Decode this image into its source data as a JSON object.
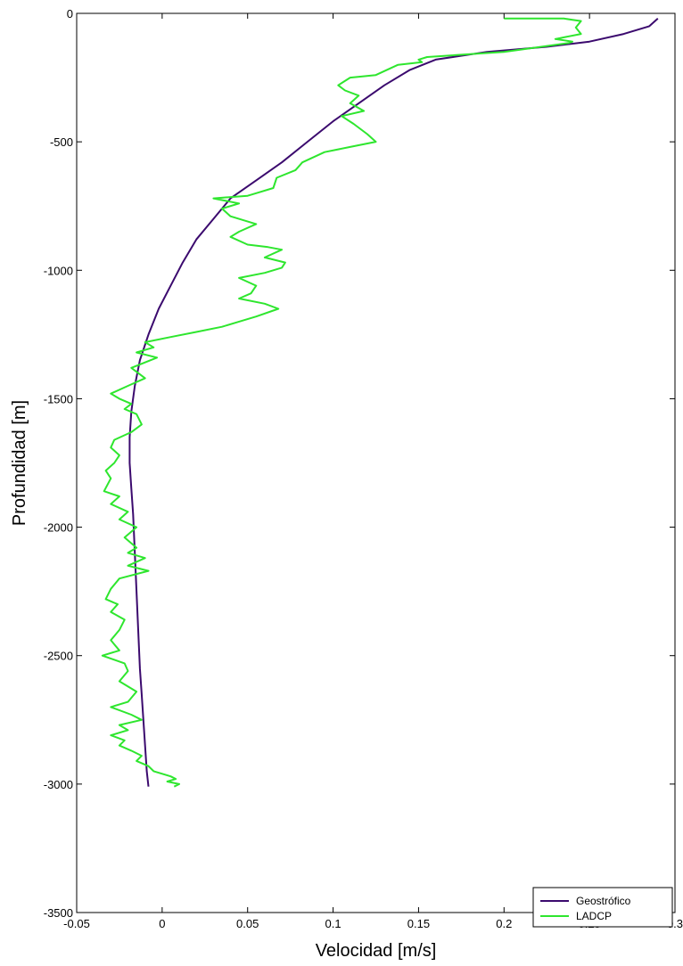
{
  "chart_data": {
    "type": "line",
    "xlabel": "Velocidad [m/s]",
    "ylabel": "Profundidad [m]",
    "xlim": [
      -0.05,
      0.3
    ],
    "ylim": [
      -3500,
      0
    ],
    "xticks": [
      -0.05,
      0,
      0.05,
      0.1,
      0.15,
      0.2,
      0.25,
      0.3
    ],
    "xtick_labels": [
      "-0.05",
      "0",
      "0.05",
      "0.1",
      "0.15",
      "0.2",
      "0.25",
      "0.3"
    ],
    "yticks": [
      0,
      -500,
      -1000,
      -1500,
      -2000,
      -2500,
      -3000,
      -3500
    ],
    "ytick_labels": [
      "0",
      "-500",
      "-1000",
      "-1500",
      "-2000",
      "-2500",
      "-3000",
      "-3500"
    ],
    "grid": false,
    "legend_position": "bottom-right",
    "series": [
      {
        "name": "Geostrófico",
        "color": "#3b0a6e",
        "x": [
          0.29,
          0.285,
          0.27,
          0.25,
          0.225,
          0.19,
          0.16,
          0.145,
          0.13,
          0.115,
          0.1,
          0.085,
          0.07,
          0.055,
          0.04,
          0.03,
          0.02,
          0.012,
          0.005,
          -0.002,
          -0.008,
          -0.013,
          -0.016,
          -0.018,
          -0.019,
          -0.019,
          -0.018,
          -0.017,
          -0.016,
          -0.015,
          -0.014,
          -0.013,
          -0.012,
          -0.011,
          -0.01,
          -0.009,
          -0.008
        ],
        "y": [
          -20,
          -50,
          -80,
          -110,
          -130,
          -150,
          -180,
          -220,
          -280,
          -350,
          -420,
          -500,
          -580,
          -650,
          -720,
          -800,
          -880,
          -970,
          -1060,
          -1150,
          -1250,
          -1350,
          -1450,
          -1550,
          -1650,
          -1750,
          -1850,
          -1950,
          -2100,
          -2250,
          -2400,
          -2550,
          -2650,
          -2750,
          -2850,
          -2950,
          -3010
        ]
      },
      {
        "name": "LADCP",
        "color": "#2ee62e",
        "x": [
          0.2,
          0.235,
          0.24,
          0.245,
          0.242,
          0.245,
          0.23,
          0.24,
          0.238,
          0.2,
          0.155,
          0.15,
          0.152,
          0.138,
          0.125,
          0.11,
          0.103,
          0.107,
          0.115,
          0.11,
          0.118,
          0.105,
          0.112,
          0.12,
          0.125,
          0.11,
          0.095,
          0.082,
          0.078,
          0.067,
          0.065,
          0.055,
          0.05,
          0.03,
          0.045,
          0.035,
          0.04,
          0.055,
          0.045,
          0.04,
          0.05,
          0.062,
          0.07,
          0.06,
          0.072,
          0.07,
          0.06,
          0.045,
          0.055,
          0.052,
          0.045,
          0.06,
          0.068,
          0.055,
          0.045,
          0.035,
          0.02,
          0.005,
          -0.01,
          -0.005,
          -0.015,
          -0.003,
          -0.018,
          -0.01,
          -0.02,
          -0.03,
          -0.025,
          -0.018,
          -0.022,
          -0.015,
          -0.012,
          -0.018,
          -0.028,
          -0.03,
          -0.025,
          -0.028,
          -0.033,
          -0.03,
          -0.034,
          -0.025,
          -0.03,
          -0.02,
          -0.025,
          -0.015,
          -0.022,
          -0.015,
          -0.02,
          -0.01,
          -0.02,
          -0.008,
          -0.025,
          -0.03,
          -0.033,
          -0.026,
          -0.03,
          -0.022,
          -0.025,
          -0.03,
          -0.025,
          -0.035,
          -0.022,
          -0.02,
          -0.025,
          -0.015,
          -0.02,
          -0.03,
          -0.018,
          -0.012,
          -0.025,
          -0.02,
          -0.03,
          -0.022,
          -0.025,
          -0.018,
          -0.012,
          -0.015,
          -0.008,
          -0.005,
          0.0,
          0.005,
          0.008,
          0.003,
          0.01,
          0.007
        ],
        "y": [
          -20,
          -20,
          -25,
          -30,
          -55,
          -80,
          -100,
          -110,
          -115,
          -150,
          -170,
          -180,
          -190,
          -200,
          -240,
          -250,
          -280,
          -300,
          -320,
          -350,
          -380,
          -400,
          -430,
          -470,
          -500,
          -520,
          -540,
          -580,
          -610,
          -640,
          -680,
          -700,
          -710,
          -720,
          -740,
          -760,
          -790,
          -820,
          -850,
          -870,
          -900,
          -910,
          -920,
          -950,
          -970,
          -990,
          -1010,
          -1030,
          -1060,
          -1090,
          -1110,
          -1130,
          -1150,
          -1180,
          -1200,
          -1220,
          -1240,
          -1260,
          -1280,
          -1300,
          -1320,
          -1340,
          -1380,
          -1420,
          -1450,
          -1480,
          -1500,
          -1520,
          -1540,
          -1560,
          -1600,
          -1630,
          -1660,
          -1690,
          -1720,
          -1750,
          -1780,
          -1810,
          -1860,
          -1880,
          -1910,
          -1940,
          -1970,
          -2000,
          -2040,
          -2080,
          -2100,
          -2120,
          -2150,
          -2170,
          -2200,
          -2240,
          -2280,
          -2300,
          -2330,
          -2360,
          -2400,
          -2440,
          -2480,
          -2500,
          -2530,
          -2560,
          -2600,
          -2640,
          -2680,
          -2700,
          -2730,
          -2750,
          -2770,
          -2790,
          -2810,
          -2830,
          -2850,
          -2870,
          -2890,
          -2910,
          -2930,
          -2950,
          -2960,
          -2970,
          -2980,
          -2990,
          -3000,
          -3010
        ]
      }
    ]
  }
}
